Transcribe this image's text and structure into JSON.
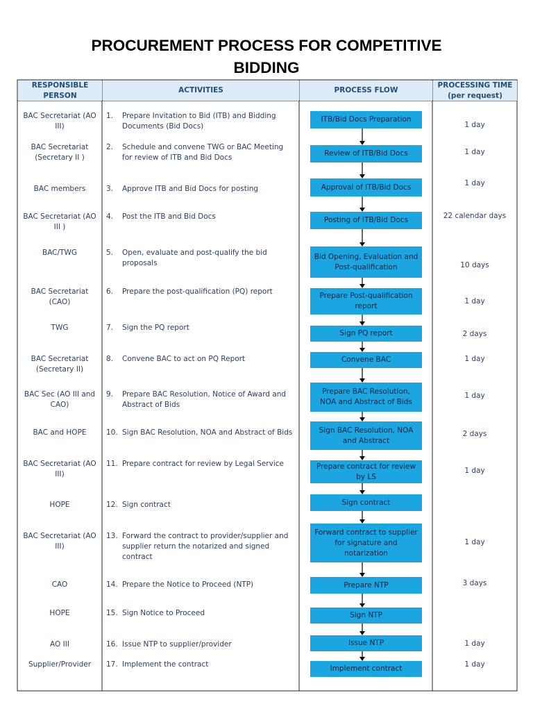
{
  "header": {
    "title": "PROCUREMENT PROCESS FOR COMPETITIVE BIDDING"
  },
  "table": {
    "columns": [
      "RESPONSIBLE PERSON",
      "ACTIVITIES",
      "PROCESS FLOW",
      "PROCESSING TIME (per request)"
    ],
    "rows": [
      {
        "person": "BAC Secretariat (AO III)",
        "number": "1.",
        "activity": "Prepare Invitation to Bid (ITB) and Bidding Documents (Bid Docs)",
        "flow": "ITB/Bid Docs Preparation",
        "time": "1 day"
      },
      {
        "person": "BAC Secretariat (Secretary II )",
        "number": "2.",
        "activity": "Schedule and convene TWG or BAC Meeting for review of ITB and Bid Docs",
        "flow": "Review of ITB/Bid Docs",
        "time": "1 day"
      },
      {
        "person": "BAC members",
        "number": "3.",
        "activity": "Approve ITB and Bid Docs for posting",
        "flow": "Approval of ITB/Bid Docs",
        "time": "1 day"
      },
      {
        "person": "BAC Secretariat (AO III )",
        "number": "4.",
        "activity": "Post the ITB and Bid Docs",
        "flow": "Posting of ITB/Bid Docs",
        "time": "22 calendar days"
      },
      {
        "person": "BAC/TWG",
        "number": "5.",
        "activity": "Open, evaluate and post-qualify the bid proposals",
        "flow": "Bid Opening, Evaluation and Post-qualification",
        "time": "10 days"
      },
      {
        "person": "BAC Secretariat (CAO)",
        "number": "6.",
        "activity": "Prepare the post-qualification  (PQ) report",
        "flow": "Prepare Post-qualification report",
        "time": "1 day"
      },
      {
        "person": "TWG",
        "number": "7.",
        "activity": "Sign the PQ report",
        "flow": "Sign PQ report",
        "time": "2 days"
      },
      {
        "person": "BAC Secretariat (Secretary II)",
        "number": "8.",
        "activity": "Convene BAC to act  on  PQ Report",
        "flow": "Convene BAC",
        "time": "1 day"
      },
      {
        "person": "BAC Sec (AO III and CAO)",
        "number": "9.",
        "activity": "Prepare BAC Resolution, Notice of Award and Abstract of Bids",
        "flow": "Prepare BAC Resolution, NOA and Abstract of Bids",
        "time": "1 day"
      },
      {
        "person": "BAC  and HOPE",
        "number": "10.",
        "activity": "Sign BAC Resolution, NOA and Abstract of Bids",
        "flow": "Sign BAC Resolution, NOA and Abstract",
        "time": "2 days"
      },
      {
        "person": "BAC Secretariat (AO III)",
        "number": "11.",
        "activity": "Prepare contract for review by Legal Service",
        "flow": "Prepare contract for review by LS",
        "time": "1 day"
      },
      {
        "person": "HOPE",
        "number": "12.",
        "activity": "Sign contract",
        "flow": "Sign contract"
      },
      {
        "person": "BAC Secretariat (AO III)",
        "number": "13.",
        "activity": "Forward the contract to provider/supplier and supplier return the notarized and signed contract",
        "flow": "Forward contract to supplier for signature and notarization",
        "time": "1 day"
      },
      {
        "person": "CAO",
        "number": "14.",
        "activity": "Prepare the Notice to Proceed (NTP)",
        "flow": "Prepare NTP",
        "time": "3 days"
      },
      {
        "person": "HOPE",
        "number": "15.",
        "activity": "Sign Notice to Proceed",
        "flow": "Sign NTP"
      },
      {
        "person": "AO III",
        "number": "16.",
        "activity": "Issue NTP to supplier/provider",
        "flow": "Issue NTP",
        "time": "1 day"
      },
      {
        "person": "Supplier/Provider",
        "number": "17.",
        "activity": "Implement the contract",
        "flow": "Implement contract",
        "time": "1 day"
      }
    ]
  }
}
